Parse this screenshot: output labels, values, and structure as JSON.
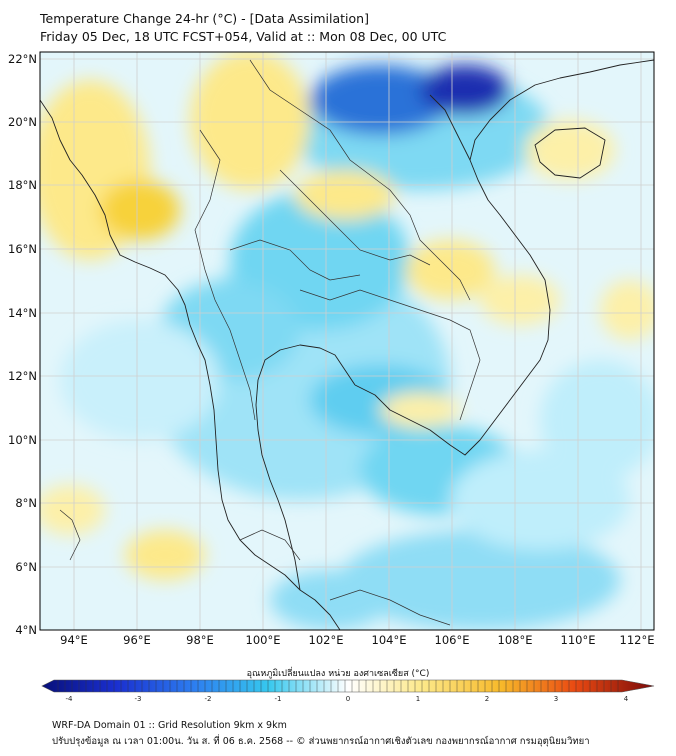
{
  "title": {
    "line1": "Temperature Change 24-hr (°C) - [Data Assimilation]",
    "line2": "Friday 05 Dec, 18 UTC FCST+054, Valid at :: Mon 08 Dec, 00 UTC"
  },
  "map": {
    "lat_labels": [
      "22°N",
      "20°N",
      "18°N",
      "16°N",
      "14°N",
      "12°N",
      "10°N",
      "8°N",
      "6°N",
      "4°N"
    ],
    "lon_labels": [
      "94°E",
      "96°E",
      "98°E",
      "100°E",
      "102°E",
      "104°E",
      "106°E",
      "108°E",
      "110°E",
      "112°E"
    ],
    "lat_range": [
      4,
      22.3
    ],
    "lon_range": [
      93,
      112.4
    ],
    "colors": {
      "cold_strong": "#1a2fb0",
      "cold": "#36c8ee",
      "cool": "#bfeefb",
      "neutral": "#e8f7fb",
      "warm": "#fde98a",
      "warmer": "#f7d23a",
      "border": "#222222",
      "grid": "#cfcfcf"
    }
  },
  "colorbar": {
    "title": "อุณหภูมิเปลี่ยนแปลง หน่วย องศาเซลเซียส (°C)",
    "ticks": [
      "-4",
      "-3",
      "-2",
      "-1",
      "0",
      "1",
      "2",
      "3",
      "4"
    ],
    "range": [
      -4,
      4
    ]
  },
  "footer": {
    "line1": "WRF-DA Domain 01 :: Grid Resolution 9km x 9km",
    "line2": "ปรับปรุงข้อมูล ณ เวลา 01:00น. วัน ส. ที่ 06 ธ.ค. 2568 -- © ส่วนพยากรณ์อากาศเชิงตัวเลข กองพยากรณ์อากาศ กรมอุตุนิยมวิทยา"
  }
}
